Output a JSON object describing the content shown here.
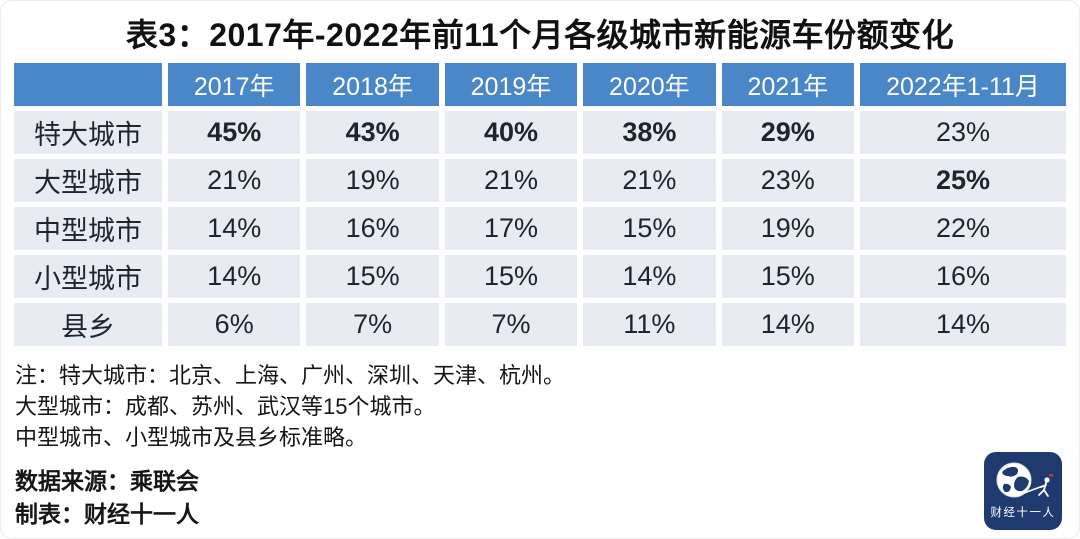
{
  "chart_data": {
    "type": "table",
    "title": "表3：2017年-2022年前11个月各级城市新能源车份额变化",
    "corner_label": "",
    "columns": [
      "2017年",
      "2018年",
      "2019年",
      "2020年",
      "2021年",
      "2022年1-11月"
    ],
    "rows": [
      {
        "label": "特大城市",
        "values": [
          "45%",
          "43%",
          "40%",
          "38%",
          "29%",
          "23%"
        ],
        "bold": [
          true,
          true,
          true,
          true,
          true,
          false
        ]
      },
      {
        "label": "大型城市",
        "values": [
          "21%",
          "19%",
          "21%",
          "21%",
          "23%",
          "25%"
        ],
        "bold": [
          false,
          false,
          false,
          false,
          false,
          true
        ]
      },
      {
        "label": "中型城市",
        "values": [
          "14%",
          "16%",
          "17%",
          "15%",
          "19%",
          "22%"
        ],
        "bold": [
          false,
          false,
          false,
          false,
          false,
          false
        ]
      },
      {
        "label": "小型城市",
        "values": [
          "14%",
          "15%",
          "15%",
          "14%",
          "15%",
          "16%"
        ],
        "bold": [
          false,
          false,
          false,
          false,
          false,
          false
        ]
      },
      {
        "label": "县乡",
        "values": [
          "6%",
          "7%",
          "7%",
          "11%",
          "14%",
          "14%"
        ],
        "bold": [
          false,
          false,
          false,
          false,
          false,
          false
        ]
      }
    ]
  },
  "notes": [
    "注：特大城市：北京、上海、广州、深圳、天津、杭州。",
    "大型城市：成都、苏州、武汉等15个城市。",
    "中型城市、小型城市及县乡标准略。"
  ],
  "source": {
    "data_source": "数据来源：乘联会",
    "credit": "制表：财经十一人"
  },
  "logo": {
    "text": "财经十一人"
  },
  "colors": {
    "header_bg": "#4a87c9",
    "cell_bg": "#e8ebf1",
    "title_text": "#111111",
    "header_text": "#ffffff",
    "body_text": "#1c2530",
    "logo_bg": "#1e3a6e",
    "logo_accent": "#c0392b"
  }
}
